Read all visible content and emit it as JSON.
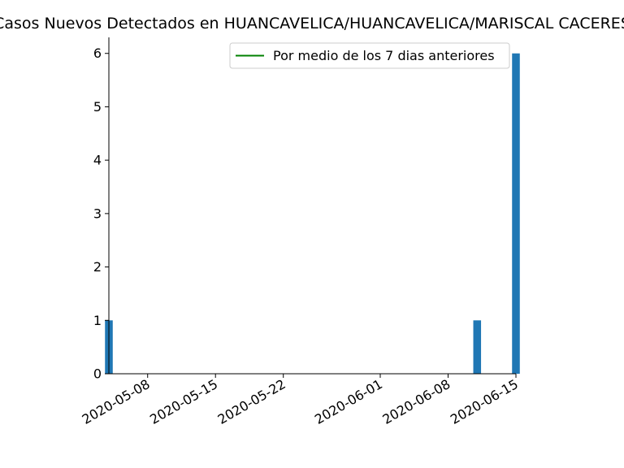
{
  "chart_data": {
    "type": "bar",
    "title": "Casos Nuevos Detectados en HUANCAVELICA/HUANCAVELICA/MARISCAL CACERES",
    "xlabel": "",
    "ylabel": "",
    "x_range": [
      "2020-05-04",
      "2020-06-15"
    ],
    "ylim": [
      0,
      6.3
    ],
    "y_ticks": [
      "0",
      "1",
      "2",
      "3",
      "4",
      "5",
      "6"
    ],
    "x_ticks": [
      "2020-05-08",
      "2020-05-15",
      "2020-05-22",
      "2020-06-01",
      "2020-06-08",
      "2020-06-15"
    ],
    "bars": [
      {
        "date": "2020-05-04",
        "value": 1
      },
      {
        "date": "2020-06-11",
        "value": 1
      },
      {
        "date": "2020-06-15",
        "value": 6
      }
    ],
    "bar_color": "#1f77b4",
    "legend": {
      "position": "top-right",
      "entries": [
        {
          "label": "Por medio de los 7 dias anteriores",
          "color": "#008000",
          "style": "line"
        }
      ]
    },
    "grid": false
  }
}
